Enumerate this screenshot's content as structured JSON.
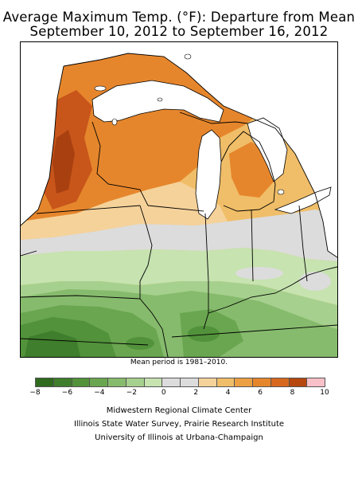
{
  "title": {
    "line1": "Average Maximum Temp. (°F): Departure from Mean",
    "line2": "September 10, 2012 to September 16, 2012"
  },
  "note": "Mean period is 1981–2010.",
  "legend": {
    "ticks": [
      "−8",
      "−6",
      "−4",
      "−2",
      "0",
      "2",
      "4",
      "6",
      "8",
      "10"
    ],
    "colors": [
      "#2f6a1f",
      "#3f7e2c",
      "#52923b",
      "#6aa650",
      "#86bb6d",
      "#a6d08d",
      "#c6e3b0",
      "#dcdcdc",
      "#dcdcdc",
      "#f5d29a",
      "#f0be68",
      "#eca044",
      "#e6862c",
      "#d7681f",
      "#b5470f",
      "#f8c0c8"
    ]
  },
  "credits": {
    "line1": "Midwestern Regional Climate Center",
    "line2": "Illinois State Water Survey, Prairie Research Institute",
    "line3": "University of Illinois at Urbana-Champaign"
  },
  "map": {
    "region": "Upper Midwest / Great Lakes",
    "colors": {
      "dark_orange": "#c8551a",
      "orange": "#e6862c",
      "light_orange": "#f0be68",
      "pale_orange": "#f5d29a",
      "gray": "#dcdcdc",
      "pale_green": "#c6e3b0",
      "light_green": "#a6d08d",
      "green": "#86bb6d",
      "mid_green": "#6aa650",
      "dark_green": "#52923b",
      "darkest_green": "#3f7e2c",
      "lake": "#ffffff"
    }
  }
}
